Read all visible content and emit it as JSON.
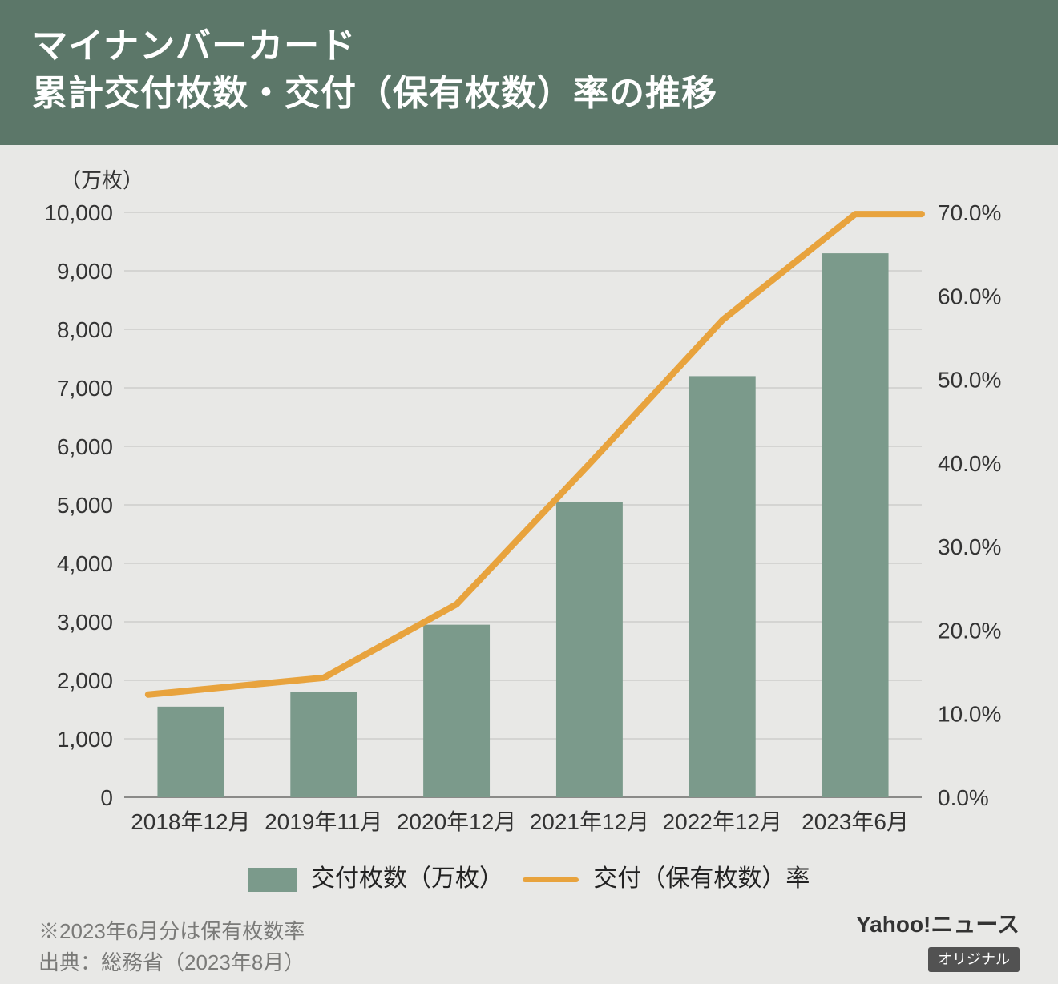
{
  "header": {
    "title_line1": "マイナンバーカード",
    "title_line2": "累計交付枚数・交付（保有枚数）率の推移"
  },
  "chart": {
    "type": "bar+line",
    "unit_label": "（万枚）",
    "background_color": "#e8e8e6",
    "grid_color": "#bfbfbd",
    "axis_color": "#8a8a88",
    "bar_color": "#7b9a8b",
    "line_color": "#e8a33d",
    "line_width": 8,
    "bar_width_ratio": 0.5,
    "font_size_axis": 28,
    "y_left": {
      "min": 0,
      "max": 10000,
      "step": 1000,
      "ticks": [
        "0",
        "1,000",
        "2,000",
        "3,000",
        "4,000",
        "5,000",
        "6,000",
        "7,000",
        "8,000",
        "9,000",
        "10,000"
      ]
    },
    "y_right": {
      "min": 0,
      "max": 70,
      "step": 10,
      "ticks": [
        "0.0%",
        "10.0%",
        "20.0%",
        "30.0%",
        "40.0%",
        "50.0%",
        "60.0%",
        "70.0%"
      ]
    },
    "categories": [
      "2018年12月",
      "2019年11月",
      "2020年12月",
      "2021年12月",
      "2022年12月",
      "2023年6月"
    ],
    "bars": [
      1550,
      1800,
      2950,
      5050,
      7200,
      9300
    ],
    "line_pct": [
      12.3,
      14.3,
      23.1,
      39.9,
      57.1,
      69.8
    ]
  },
  "legend": {
    "bar_label": "交付枚数（万枚）",
    "line_label": "交付（保有枚数）率"
  },
  "notes": {
    "note1": "※2023年6月分は保有枚数率",
    "note2": "出典：総務省（2023年8月）"
  },
  "brand": {
    "text": "Yahoo!ニュース",
    "tag": "オリジナル"
  }
}
